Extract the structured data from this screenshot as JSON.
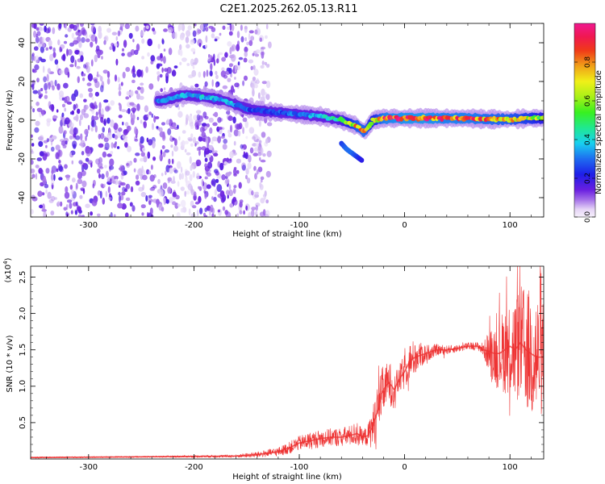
{
  "title": "C2E1.2025.262.05.13.R11",
  "colors": {
    "snr_line": "#ee3333",
    "background": "#ffffff",
    "axis": "#000000",
    "spectrogram_low": "#7a28e0",
    "spectrogram_faint": "#d9c6f3"
  },
  "colorbar": {
    "label": "Normalized spectral amplitude",
    "ticks": [
      "0.0",
      "0.2",
      "0.4",
      "0.6",
      "0.8"
    ],
    "tick_values": [
      0.0,
      0.2,
      0.4,
      0.6,
      0.8
    ],
    "range": [
      0.0,
      1.0
    ],
    "colormap": "rainbow: violet-blue-cyan-green-yellow-red-magenta"
  },
  "chart_data": [
    {
      "type": "heatmap",
      "title": "",
      "xlabel": "Height of straight line (km)",
      "ylabel": "Frequency (Hz)",
      "xlim": [
        -355,
        132
      ],
      "ylim": [
        -50,
        50
      ],
      "xticks": [
        -300,
        -200,
        -100,
        0,
        100
      ],
      "xtick_labels": [
        "-300",
        "-200",
        "-100",
        "0",
        "100"
      ],
      "yticks": [
        -40,
        -20,
        0,
        20,
        40
      ],
      "ytick_labels": [
        "-40",
        "-20",
        "0",
        "20",
        "40"
      ],
      "ridge": {
        "description": "Dominant spectral ridge (center frequency) with normalized amplitude",
        "x": [
          -230,
          -210,
          -190,
          -170,
          -160,
          -150,
          -140,
          -120,
          -100,
          -80,
          -60,
          -45,
          -38,
          -30,
          -20,
          0,
          20,
          40,
          60,
          80,
          100,
          120,
          130
        ],
        "frequency": [
          10,
          13,
          12,
          10,
          8,
          6,
          5,
          4,
          3,
          2,
          0,
          -3,
          -6,
          0,
          1,
          1,
          1,
          1,
          1,
          0.5,
          0.5,
          1,
          1
        ],
        "amplitude": [
          0.35,
          0.4,
          0.4,
          0.38,
          0.35,
          0.3,
          0.25,
          0.28,
          0.32,
          0.4,
          0.5,
          0.8,
          0.85,
          0.6,
          0.9,
          0.95,
          0.95,
          0.9,
          0.9,
          0.85,
          0.8,
          0.7,
          0.6
        ]
      },
      "secondary_branch": {
        "x": [
          -60,
          -55,
          -50,
          -45,
          -40
        ],
        "frequency": [
          -12,
          -15,
          -17,
          -19,
          -21
        ],
        "amplitude": [
          0.25,
          0.3,
          0.3,
          0.25,
          0.2
        ]
      },
      "noise_region": {
        "x_range": [
          -355,
          -140
        ],
        "frequency_range": [
          -50,
          50
        ],
        "amplitude": 0.15,
        "description": "broadband low-amplitude noise"
      }
    },
    {
      "type": "line",
      "title": "",
      "xlabel": "Height of straight line (km)",
      "ylabel": "SNR (10 * v/v)",
      "y_multiplier_label": "(x10",
      "y_multiplier_exponent": "4",
      "y_multiplier_close": ")",
      "xlim": [
        -355,
        132
      ],
      "ylim": [
        0,
        2.65
      ],
      "xticks": [
        -300,
        -200,
        -100,
        0,
        100
      ],
      "xtick_labels": [
        "-300",
        "-200",
        "-100",
        "0",
        "100"
      ],
      "yticks": [
        0.5,
        1.0,
        1.5,
        2.0,
        2.5
      ],
      "ytick_labels": [
        "0.5",
        "1.0",
        "1.5",
        "2.0",
        "2.5"
      ],
      "series": [
        {
          "name": "SNR",
          "x": [
            -355,
            -250,
            -160,
            -140,
            -120,
            -110,
            -100,
            -90,
            -80,
            -70,
            -60,
            -50,
            -45,
            -40,
            -35,
            -30,
            -25,
            -22,
            -18,
            -15,
            -12,
            -10,
            -5,
            0,
            5,
            10,
            20,
            30,
            40,
            50,
            60,
            70,
            75,
            80,
            85,
            90,
            95,
            100,
            105,
            110,
            115,
            120,
            125,
            130
          ],
          "y": [
            0.02,
            0.03,
            0.04,
            0.06,
            0.1,
            0.15,
            0.22,
            0.25,
            0.28,
            0.3,
            0.3,
            0.33,
            0.35,
            0.3,
            0.32,
            0.45,
            0.7,
            0.9,
            1.0,
            1.05,
            1.0,
            0.95,
            1.1,
            1.2,
            1.35,
            1.4,
            1.45,
            1.5,
            1.5,
            1.52,
            1.55,
            1.55,
            1.5,
            1.48,
            1.45,
            1.45,
            1.5,
            1.55,
            1.5,
            1.6,
            1.5,
            1.45,
            1.4,
            1.4
          ],
          "spread": [
            0.01,
            0.01,
            0.02,
            0.04,
            0.06,
            0.08,
            0.1,
            0.12,
            0.12,
            0.12,
            0.13,
            0.14,
            0.18,
            0.1,
            0.15,
            0.3,
            0.35,
            0.35,
            0.3,
            0.3,
            0.3,
            0.2,
            0.2,
            0.25,
            0.25,
            0.25,
            0.12,
            0.08,
            0.06,
            0.05,
            0.05,
            0.06,
            0.1,
            0.3,
            0.4,
            0.5,
            0.6,
            0.7,
            0.75,
            0.8,
            0.85,
            0.9,
            0.95,
            0.8
          ]
        }
      ]
    }
  ]
}
